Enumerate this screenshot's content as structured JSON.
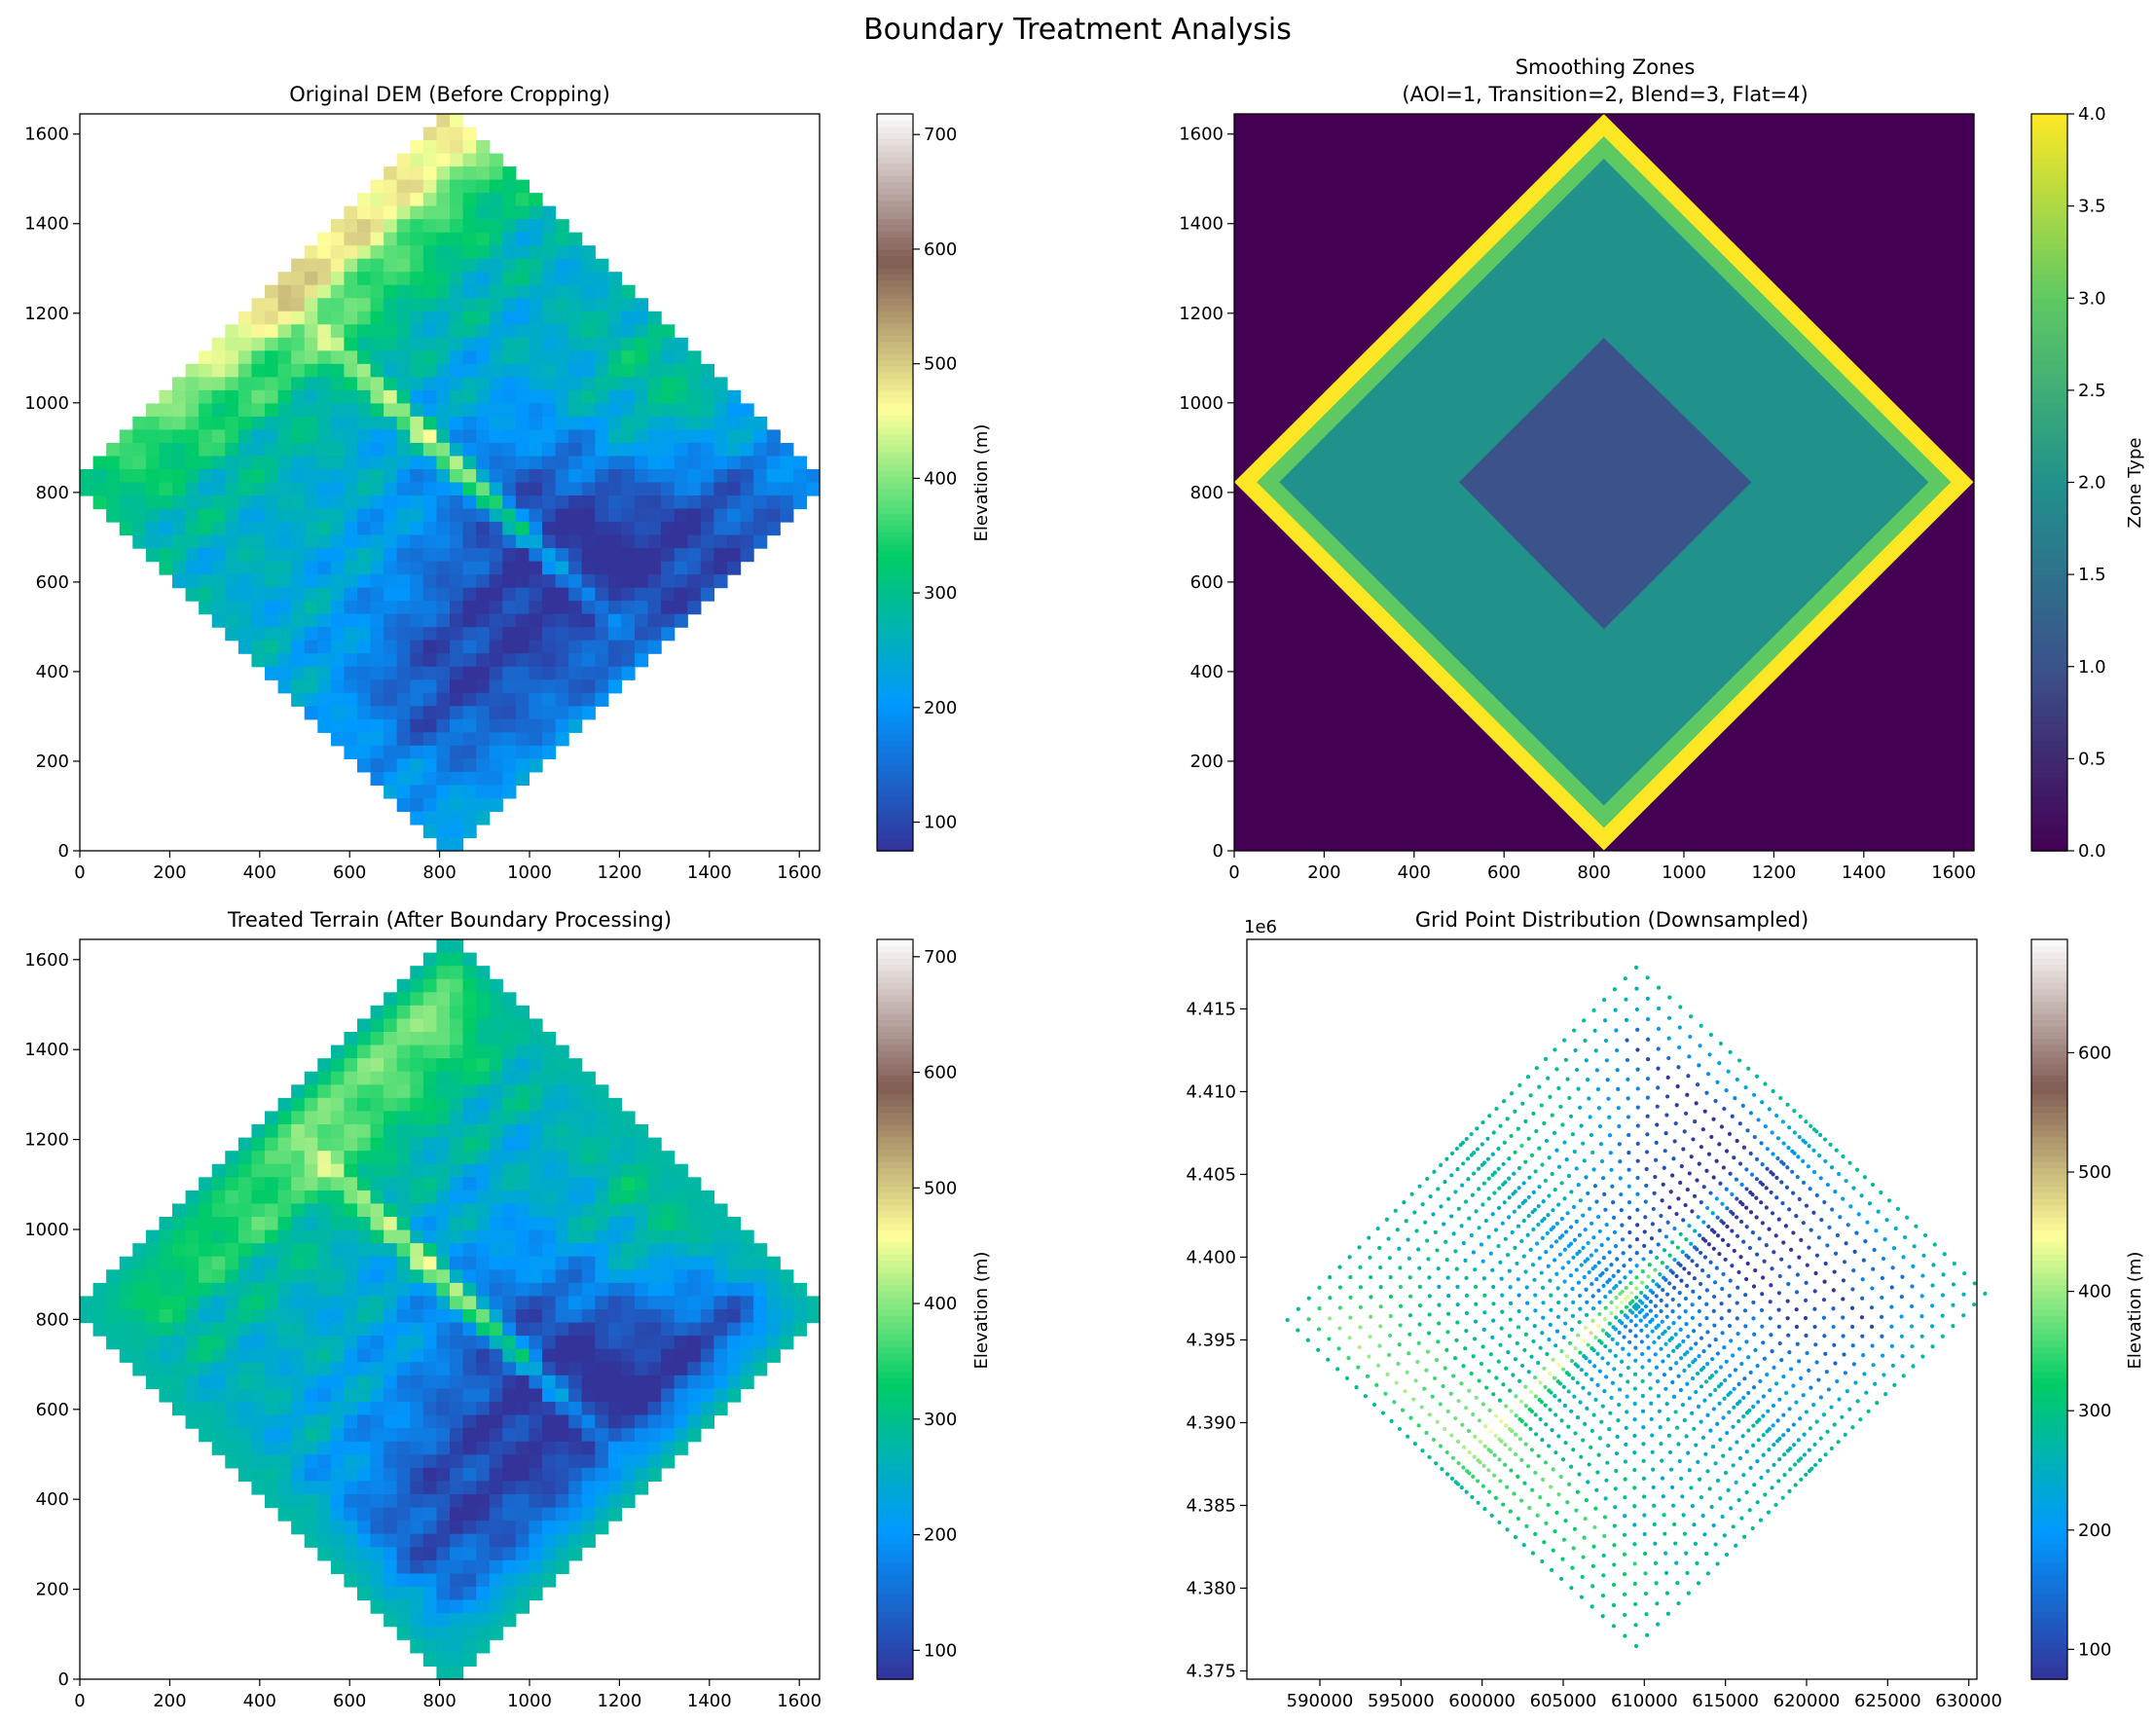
{
  "figure": {
    "suptitle": "Boundary Treatment Analysis"
  },
  "colors": {
    "terrain": [
      "#333399",
      "#0099ff",
      "#00cc66",
      "#ffff99",
      "#805c54",
      "#fdfcfc"
    ],
    "viridis": [
      "#440154",
      "#3b528b",
      "#21918c",
      "#5ec962",
      "#fde725"
    ]
  },
  "chart_data": [
    {
      "id": "original-dem",
      "type": "heatmap",
      "title": "Original DEM (Before Cropping)",
      "shape": "diamond",
      "diamond_vertices": [
        [
          822,
          0
        ],
        [
          1645,
          822
        ],
        [
          822,
          1645
        ],
        [
          0,
          822
        ]
      ],
      "xlim": [
        0,
        1645
      ],
      "ylim": [
        1645,
        0
      ],
      "x_ticks": [
        0,
        200,
        400,
        600,
        800,
        1000,
        1200,
        1400,
        1600
      ],
      "y_ticks": [
        0,
        200,
        400,
        600,
        800,
        1000,
        1200,
        1400,
        1600
      ],
      "colormap": "terrain",
      "colorbar": {
        "label": "Elevation (m)",
        "range": [
          75,
          718
        ],
        "ticks": [
          100,
          200,
          300,
          400,
          500,
          600,
          700
        ]
      },
      "features": {
        "ridge_peaks": [
          [
            700,
            60,
            700
          ],
          [
            600,
            320,
            650
          ],
          [
            450,
            460,
            600
          ]
        ],
        "valleys": [
          [
            1020,
            1080,
            80
          ],
          [
            1300,
            1050,
            140
          ],
          [
            1200,
            1300,
            150
          ]
        ]
      }
    },
    {
      "id": "smoothing-zones",
      "type": "heatmap",
      "title": "Smoothing Zones",
      "subtitle": "(AOI=1, Transition=2, Blend=3, Flat=4)",
      "xlim": [
        0,
        1645
      ],
      "ylim": [
        1645,
        0
      ],
      "x_ticks": [
        0,
        200,
        400,
        600,
        800,
        1000,
        1200,
        1400,
        1600
      ],
      "y_ticks": [
        0,
        200,
        400,
        600,
        800,
        1000,
        1200,
        1400,
        1600
      ],
      "colormap": "viridis",
      "colorbar": {
        "label": "Zone Type",
        "range": [
          0,
          4
        ],
        "ticks": [
          0.0,
          0.5,
          1.0,
          1.5,
          2.0,
          2.5,
          3.0,
          3.5,
          4.0
        ]
      },
      "zones": [
        {
          "value": 0,
          "region": "outside"
        },
        {
          "value": 4,
          "band": [
            0,
            50
          ]
        },
        {
          "value": 3,
          "band": [
            50,
            100
          ]
        },
        {
          "value": 2,
          "region": "transition"
        },
        {
          "value": 1,
          "vertices": [
            [
              822,
              500
            ],
            [
              1150,
              822
            ],
            [
              822,
              1150
            ],
            [
              500,
              822
            ]
          ]
        }
      ]
    },
    {
      "id": "treated-terrain",
      "type": "heatmap",
      "title": "Treated Terrain (After Boundary Processing)",
      "xlim": [
        0,
        1645
      ],
      "ylim": [
        1645,
        0
      ],
      "x_ticks": [
        0,
        200,
        400,
        600,
        800,
        1000,
        1200,
        1400,
        1600
      ],
      "y_ticks": [
        0,
        200,
        400,
        600,
        800,
        1000,
        1200,
        1400,
        1600
      ],
      "colormap": "terrain",
      "colorbar": {
        "label": "Elevation (m)",
        "range": [
          75,
          715
        ],
        "ticks": [
          100,
          200,
          300,
          400,
          500,
          600,
          700
        ]
      },
      "boundary_flat_elevation": 280
    },
    {
      "id": "grid-points",
      "type": "scatter",
      "title": "Grid Point Distribution (Downsampled)",
      "offset_label": "1e6",
      "xlim": [
        585500,
        630500
      ],
      "ylim": [
        4.3745,
        4.4192
      ],
      "x_ticks": [
        590000,
        595000,
        600000,
        605000,
        610000,
        615000,
        620000,
        625000,
        630000
      ],
      "y_ticks": [
        4.375,
        4.38,
        4.385,
        4.39,
        4.395,
        4.4,
        4.405,
        4.41,
        4.415
      ],
      "y_tick_labels": [
        "4.375",
        "4.380",
        "4.385",
        "4.390",
        "4.395",
        "4.400",
        "4.405",
        "4.410",
        "4.415"
      ],
      "colormap": "terrain",
      "colorbar": {
        "label": "Elevation (m)",
        "range": [
          75,
          695
        ],
        "ticks": [
          100,
          200,
          300,
          400,
          500,
          600
        ]
      },
      "diamond_corners": {
        "top": [
          609500,
          4.4175
        ],
        "right": [
          628500,
          4.3968
        ],
        "bottom": [
          609500,
          4.3765
        ],
        "left": [
          588000,
          4.3962
        ]
      },
      "grid_rows": 44,
      "grid_cols": 44
    }
  ]
}
